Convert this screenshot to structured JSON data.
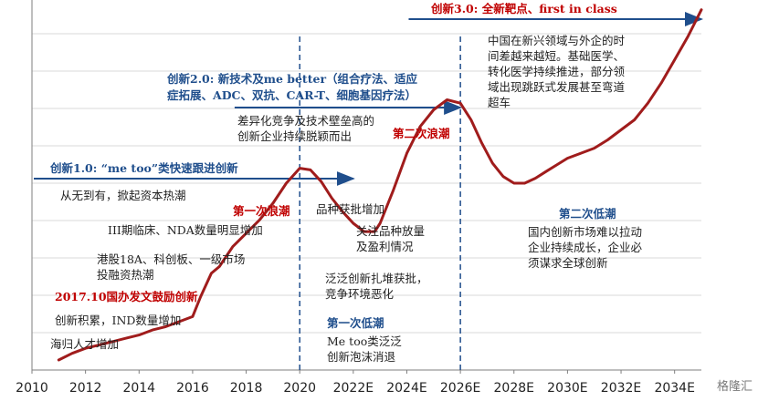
{
  "chart_data": {
    "type": "line",
    "x_ticks": [
      "2010",
      "2012",
      "2014",
      "2016",
      "2018",
      "2020",
      "2022E",
      "2024E",
      "2026E",
      "2028E",
      "2030E",
      "2032E",
      "2034E"
    ],
    "xlim": [
      2010,
      2035
    ],
    "ylim": [
      0,
      10
    ],
    "y_axis_labels": "hidden",
    "grid": "horizontal",
    "line_color": "#a01c1c",
    "series": [
      {
        "x": [
          2011.0,
          2011.5,
          2012.0,
          2012.5,
          2013.0,
          2013.5,
          2014.0,
          2014.5,
          2015.0,
          2015.5,
          2016.0,
          2016.3,
          2016.7,
          2017.0,
          2017.5,
          2018.0,
          2018.5,
          2019.0,
          2019.5,
          2020.0,
          2020.4,
          2020.8,
          2021.2,
          2021.6,
          2022.0,
          2022.4,
          2022.8,
          2023.0,
          2023.5,
          2024.0,
          2024.5,
          2025.0,
          2025.5,
          2026.0,
          2026.4,
          2026.8,
          2027.2,
          2027.6,
          2028.0,
          2028.4,
          2028.8,
          2029.2,
          2029.6,
          2030.0,
          2030.5,
          2031.0,
          2031.5,
          2032.0,
          2032.5,
          2033.0,
          2033.5,
          2034.0,
          2034.5,
          2035.0
        ],
        "y": [
          0.3,
          0.5,
          0.65,
          0.75,
          0.85,
          0.95,
          1.05,
          1.2,
          1.3,
          1.45,
          1.6,
          2.2,
          2.9,
          3.1,
          3.7,
          4.1,
          4.5,
          5.0,
          5.6,
          6.05,
          6.0,
          5.65,
          5.15,
          4.75,
          4.4,
          4.15,
          4.15,
          4.4,
          5.4,
          6.5,
          7.3,
          7.8,
          8.1,
          8.0,
          7.5,
          6.8,
          6.2,
          5.8,
          5.6,
          5.6,
          5.75,
          5.95,
          6.15,
          6.35,
          6.5,
          6.65,
          6.9,
          7.2,
          7.5,
          8.0,
          8.6,
          9.3,
          10.0,
          10.8
        ]
      }
    ],
    "dashed_vlines": [
      2020,
      2026
    ],
    "phase_headers": [
      {
        "text": "创新1.0: “me too”类快速跟进创新",
        "start": 2010,
        "end": 2022,
        "color": "#1f4e8c"
      },
      {
        "text": "创新2.0: 新技术及me better（组合疗法、适应症拓展、ADC、双抗、CAR-T、细胞基因疗法）",
        "start": 2017.5,
        "end": 2026,
        "color": "#1f4e8c"
      },
      {
        "text": "创新3.0: 全新靶点、first in class",
        "start": 2024,
        "end": 2035,
        "color": "#c00000"
      }
    ]
  },
  "labels": {
    "h1": "创新1.0: “me too”类快速跟进创新",
    "h2a": "创新2.0: 新技术及me better（组合疗法、适应",
    "h2b": "症拓展、ADC、双抗、CAR-T、细胞基因疗法）",
    "h3": "创新3.0: 全新靶点、first in class",
    "a1": "从无到有，掀起资本热潮",
    "a2": "III期临床、NDA数量明显增加",
    "a3a": "港股18A、科创板、一级市场",
    "a3b": "投融资热潮",
    "a4": "2017.10国办发文鼓励创新",
    "a5": "创新积累，IND数量增加",
    "a6": "海归人才增加",
    "b1a": "差异化竞争及技术壁垒高的",
    "b1b": "创新企业持续脱颖而出",
    "wave1": "第一次浪潮",
    "wave2": "第二次浪潮",
    "b2": "品种获批增加",
    "b3a": "关注品种放量",
    "b3b": "及盈利情况",
    "b4a": "泛泛创新扎堆获批，",
    "b4b": "竞争环境恶化",
    "low1": "第一次低潮",
    "b5a": "Me too类泛泛",
    "b5b": "创新泡沫消退",
    "c1a": "中国在新兴领域与外企的时",
    "c1b": "间差越来越短。基础医学、",
    "c1c": "转化医学持续推进，部分领",
    "c1d": "域出现跳跃式发展甚至弯道",
    "c1e": "超车",
    "low2": "第二次低潮",
    "c2a": "国内创新市场难以拉动",
    "c2b": "企业持续成长，企业必",
    "c2c": "须谋求全球创新",
    "watermark": "格隆汇"
  }
}
